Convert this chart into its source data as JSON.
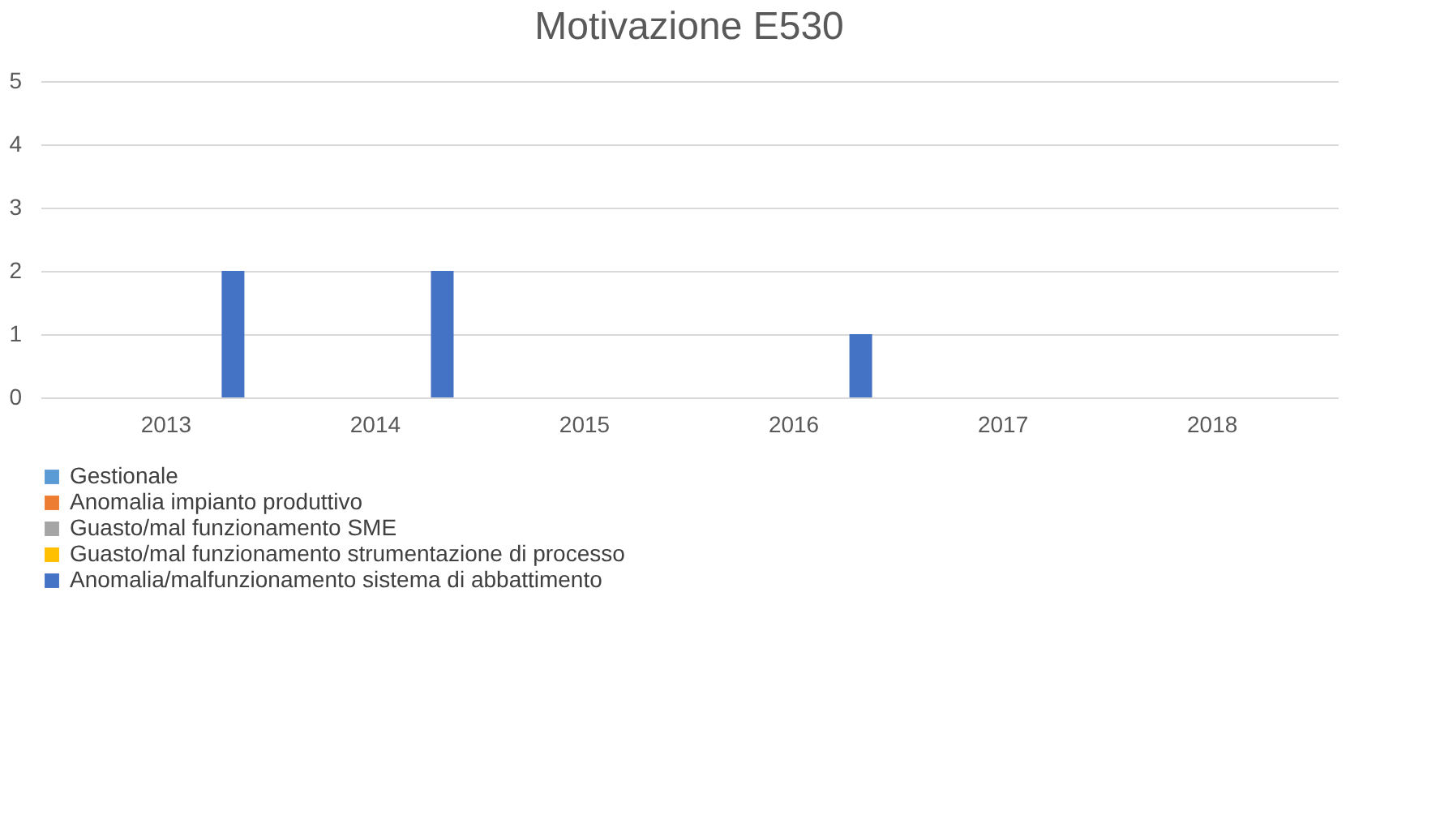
{
  "chart_data": {
    "type": "bar",
    "title": "Motivazione E530",
    "categories": [
      "2013",
      "2014",
      "2015",
      "2016",
      "2017",
      "2018"
    ],
    "series": [
      {
        "name": "Gestionale",
        "color": "#5b9bd5",
        "values": [
          0,
          0,
          0,
          0,
          0,
          0
        ]
      },
      {
        "name": "Anomalia impianto produttivo",
        "color": "#ed7d31",
        "values": [
          0,
          0,
          0,
          0,
          0,
          0
        ]
      },
      {
        "name": "Guasto/mal funzionamento SME",
        "color": "#a5a5a5",
        "values": [
          0,
          0,
          0,
          0,
          0,
          0
        ]
      },
      {
        "name": "Guasto/mal funzionamento strumentazione di processo",
        "color": "#ffc000",
        "values": [
          0,
          0,
          0,
          0,
          0,
          0
        ]
      },
      {
        "name": "Anomalia/malfunzionamento sistema di abbattimento",
        "color": "#4472c4",
        "values": [
          2,
          2,
          0,
          1,
          0,
          0
        ]
      }
    ],
    "ylim": [
      0,
      5
    ],
    "yticks": [
      0,
      1,
      2,
      3,
      4,
      5
    ],
    "grid": "y",
    "legend": "bottom"
  }
}
